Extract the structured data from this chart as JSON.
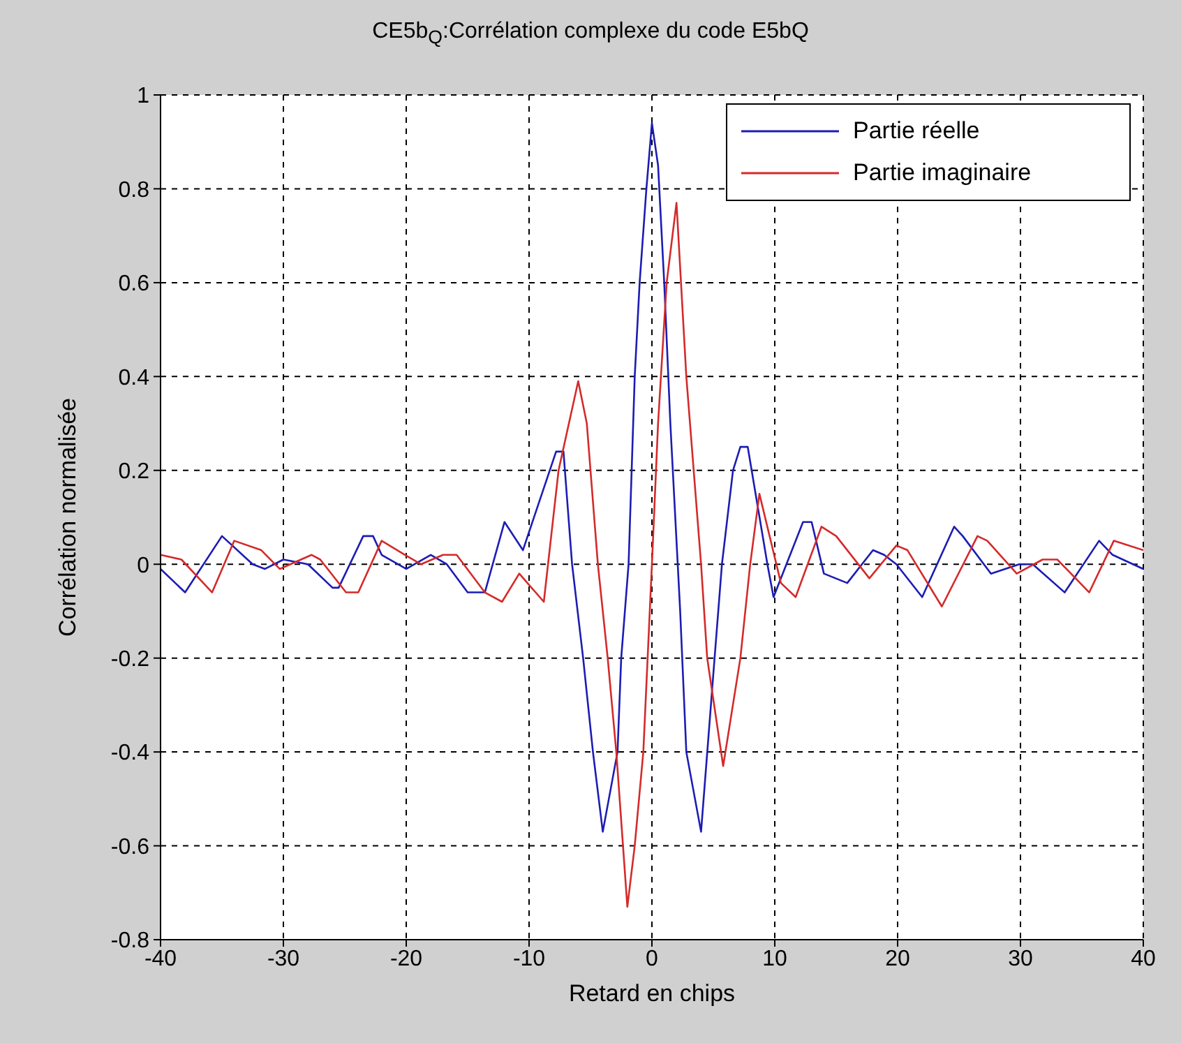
{
  "chart_data": {
    "type": "line",
    "title": "CE5b$_{Q}$:Corrélation complexe du code E5bQ",
    "xlabel": "Retard en chips",
    "ylabel": "Corrélation normalisée",
    "xlim": [
      -40,
      40
    ],
    "xticks": [
      -40,
      -30,
      -20,
      -10,
      0,
      10,
      20,
      30,
      40
    ],
    "ylim": [
      -0.8,
      1
    ],
    "yticks": [
      -0.8,
      -0.6,
      -0.4,
      -0.2,
      0,
      0.2,
      0.4,
      0.6,
      0.8,
      1
    ],
    "grid": true,
    "legend": "top right",
    "line_style": "solid",
    "marker": "none",
    "series": [
      {
        "name": "Partie réelle",
        "color": "#1c1cb4",
        "x": [
          -40,
          -38,
          -35,
          -32.5,
          -31.5,
          -30,
          -28,
          -26,
          -25.5,
          -23.5,
          -22.7,
          -22,
          -20,
          -18,
          -16.7,
          -15,
          -13.6,
          -12,
          -10.5,
          -7.8,
          -7.2,
          -6.5,
          -5.6,
          -4.8,
          -4,
          -2.8,
          -2.5,
          -1.9,
          -1.4,
          -1,
          -0.45,
          0,
          0.5,
          1,
          1.5,
          2.3,
          2.8,
          4,
          5.1,
          5.7,
          6.6,
          7.2,
          7.8,
          9.4,
          9.9,
          12.3,
          13,
          14,
          15.9,
          18,
          18.9,
          19.9,
          22,
          24.6,
          25.3,
          27.6,
          29.9,
          31,
          33.6,
          36.4,
          37.5,
          40
        ],
        "values": [
          -0.01,
          -0.06,
          0.06,
          0,
          -0.01,
          0.01,
          0,
          -0.05,
          -0.05,
          0.06,
          0.06,
          0.02,
          -0.01,
          0.02,
          0,
          -0.06,
          -0.06,
          0.09,
          0.03,
          0.24,
          0.24,
          0,
          -0.2,
          -0.4,
          -0.57,
          -0.4,
          -0.2,
          0,
          0.4,
          0.6,
          0.8,
          0.94,
          0.85,
          0.6,
          0.3,
          -0.1,
          -0.4,
          -0.57,
          -0.2,
          0,
          0.2,
          0.25,
          0.25,
          0,
          -0.07,
          0.09,
          0.09,
          -0.02,
          -0.04,
          0.03,
          0.02,
          0,
          -0.07,
          0.08,
          0.06,
          -0.02,
          0,
          0,
          -0.06,
          0.05,
          0.02,
          -0.01
        ]
      },
      {
        "name": "Partie imaginaire",
        "color": "#d42a2a",
        "x": [
          -40,
          -38.3,
          -35.8,
          -34,
          -31.8,
          -30.3,
          -27.7,
          -27,
          -24.9,
          -23.9,
          -22,
          -20.1,
          -18.8,
          -17,
          -15.9,
          -13.6,
          -12.2,
          -10.8,
          -8.8,
          -7.6,
          -6,
          -5.3,
          -4.4,
          -3.6,
          -2.9,
          -2,
          -1.4,
          -0.7,
          0,
          0.5,
          1.2,
          2,
          2.8,
          4,
          4.5,
          5.8,
          7.2,
          8,
          8.75,
          10.5,
          11.7,
          13.8,
          15,
          17.7,
          19.9,
          20.8,
          23.6,
          26.5,
          27.3,
          29.7,
          31.8,
          33,
          35.6,
          37.6,
          40
        ],
        "values": [
          0.02,
          0.01,
          -0.06,
          0.05,
          0.03,
          -0.01,
          0.02,
          0.01,
          -0.06,
          -0.06,
          0.05,
          0.02,
          0,
          0.02,
          0.02,
          -0.06,
          -0.08,
          -0.02,
          -0.08,
          0.2,
          0.39,
          0.3,
          0,
          -0.2,
          -0.4,
          -0.73,
          -0.6,
          -0.4,
          0,
          0.3,
          0.6,
          0.77,
          0.4,
          0,
          -0.2,
          -0.43,
          -0.2,
          0,
          0.15,
          -0.04,
          -0.07,
          0.08,
          0.06,
          -0.03,
          0.04,
          0.03,
          -0.09,
          0.06,
          0.05,
          -0.02,
          0.01,
          0.01,
          -0.06,
          0.05,
          0.03
        ]
      }
    ]
  }
}
